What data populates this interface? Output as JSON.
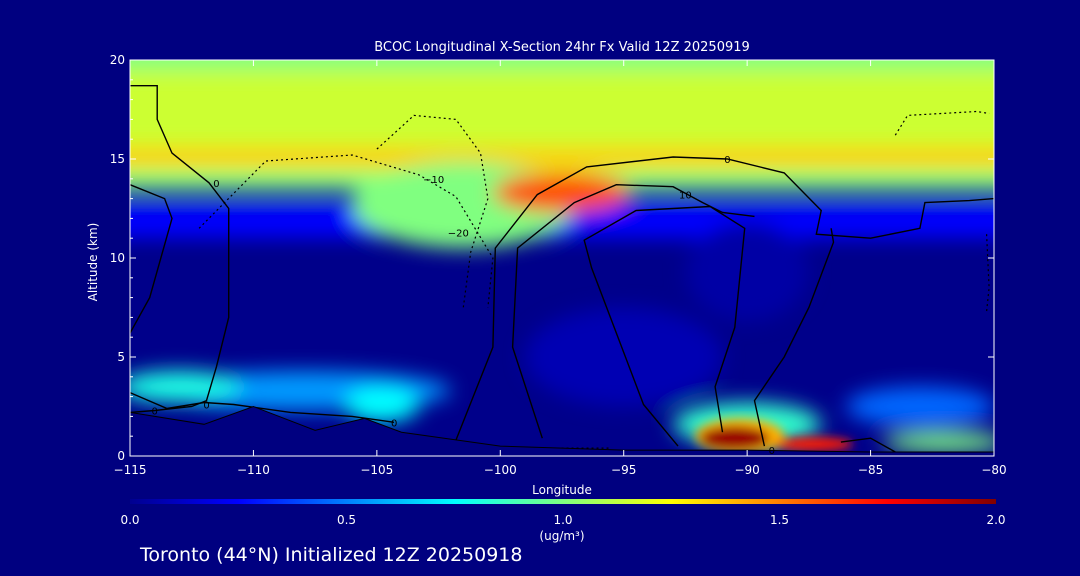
{
  "chart_data": {
    "type": "heatmap",
    "title": "BCOC Longitudinal X-Section 24hr  Fx Valid 12Z 20250919",
    "xlabel": "Longitude",
    "ylabel": "Altitude (km)",
    "xlim": [
      -115,
      -80
    ],
    "ylim": [
      0,
      20
    ],
    "x_ticks": [
      -115,
      -110,
      -105,
      -100,
      -95,
      -90,
      -85,
      -80
    ],
    "x_tick_labels": [
      "−115",
      "−110",
      "−105",
      "−100",
      "−95",
      "−90",
      "−85",
      "−80"
    ],
    "y_ticks": [
      0,
      5,
      10,
      15,
      20
    ],
    "y_tick_labels": [
      "0",
      "5",
      "10",
      "15",
      "20"
    ],
    "colorbar": {
      "min": 0.0,
      "max": 2.0,
      "ticks": [
        0.0,
        0.5,
        1.0,
        1.5,
        2.0
      ],
      "tick_labels": [
        "0.0",
        "0.5",
        "1.0",
        "1.5",
        "2.0"
      ],
      "unit_label": "(ug/m³)",
      "colors": [
        "#00008f",
        "#0000ff",
        "#0080ff",
        "#00ffff",
        "#80ff80",
        "#ffff00",
        "#ff8000",
        "#ff0000",
        "#800000"
      ]
    },
    "concentration_features": [
      {
        "name": "upper band",
        "lon": [
          -115,
          -80
        ],
        "alt_km": [
          14,
          20
        ],
        "value": 1.1
      },
      {
        "name": "band max",
        "lon": [
          -115,
          -80
        ],
        "alt_km": [
          15,
          15
        ],
        "value": 1.4
      },
      {
        "name": "core",
        "lon": [
          -99,
          -96
        ],
        "alt_km": [
          12.5,
          13.5
        ],
        "value": 1.6
      },
      {
        "name": "surface plume",
        "lon": [
          -92,
          -88
        ],
        "alt_km": [
          0.5,
          1.5
        ],
        "value": 2.0
      },
      {
        "name": "low-level layer",
        "lon": [
          -115,
          -102
        ],
        "alt_km": [
          2,
          4
        ],
        "value": 0.7
      }
    ],
    "contour_labels": [
      {
        "text": "0",
        "lon": -111.5,
        "alt": 13.8
      },
      {
        "text": "0",
        "lon": -111.9,
        "alt": 2.6
      },
      {
        "text": "0",
        "lon": -114,
        "alt": 2.3
      },
      {
        "text": "0",
        "lon": -104.3,
        "alt": 1.7
      },
      {
        "text": "0",
        "lon": -90.8,
        "alt": 15.0
      },
      {
        "text": "−10",
        "lon": -102.7,
        "alt": 14.0
      },
      {
        "text": "−20",
        "lon": -101.7,
        "alt": 11.3
      },
      {
        "text": "10",
        "lon": -92.5,
        "alt": 13.2
      },
      {
        "text": "0",
        "lon": -89,
        "alt": 0.3
      }
    ],
    "terrain_alt_km": [
      [
        -115,
        2.2
      ],
      [
        -112,
        1.6
      ],
      [
        -110,
        2.5
      ],
      [
        -107.5,
        1.3
      ],
      [
        -105.5,
        1.9
      ],
      [
        -104,
        1.2
      ],
      [
        -100,
        0.5
      ],
      [
        -95,
        0.3
      ],
      [
        -90,
        0.3
      ],
      [
        -85,
        0.2
      ],
      [
        -80,
        0.2
      ]
    ]
  },
  "footer": {
    "text": "Toronto (44°N) Initialized 12Z 20250918"
  }
}
